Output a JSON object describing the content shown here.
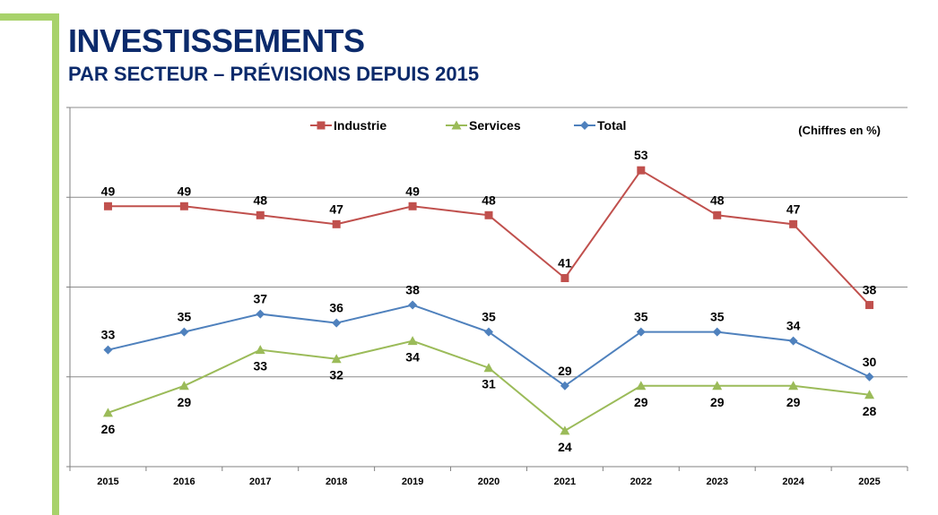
{
  "header": {
    "title": "INVESTISSEMENTS",
    "subtitle": "PAR SECTEUR – PRÉVISIONS DEPUIS 2015"
  },
  "colors": {
    "accent": "#a8d26b",
    "title": "#0b2a6b",
    "industrie": "#c0504d",
    "services": "#9bbb59",
    "total": "#4f81bd"
  },
  "chart_data": {
    "type": "line",
    "note": "(Chiffres en %)",
    "legend_position": "top",
    "grid": true,
    "ylim": [
      20,
      60
    ],
    "categories": [
      "2015",
      "2016",
      "2017",
      "2018",
      "2019",
      "2020",
      "2021",
      "2022",
      "2023",
      "2024",
      "2025"
    ],
    "series": [
      {
        "name": "Industrie",
        "marker": "square",
        "values": [
          49,
          49,
          48,
          47,
          49,
          48,
          41,
          53,
          48,
          47,
          38
        ],
        "label_position": "above"
      },
      {
        "name": "Services",
        "marker": "triangle",
        "values": [
          26,
          29,
          33,
          32,
          34,
          31,
          24,
          29,
          29,
          29,
          28
        ],
        "label_position": "below"
      },
      {
        "name": "Total",
        "marker": "diamond",
        "values": [
          33,
          35,
          37,
          36,
          38,
          35,
          29,
          35,
          35,
          34,
          30
        ],
        "label_position": "above"
      }
    ]
  }
}
